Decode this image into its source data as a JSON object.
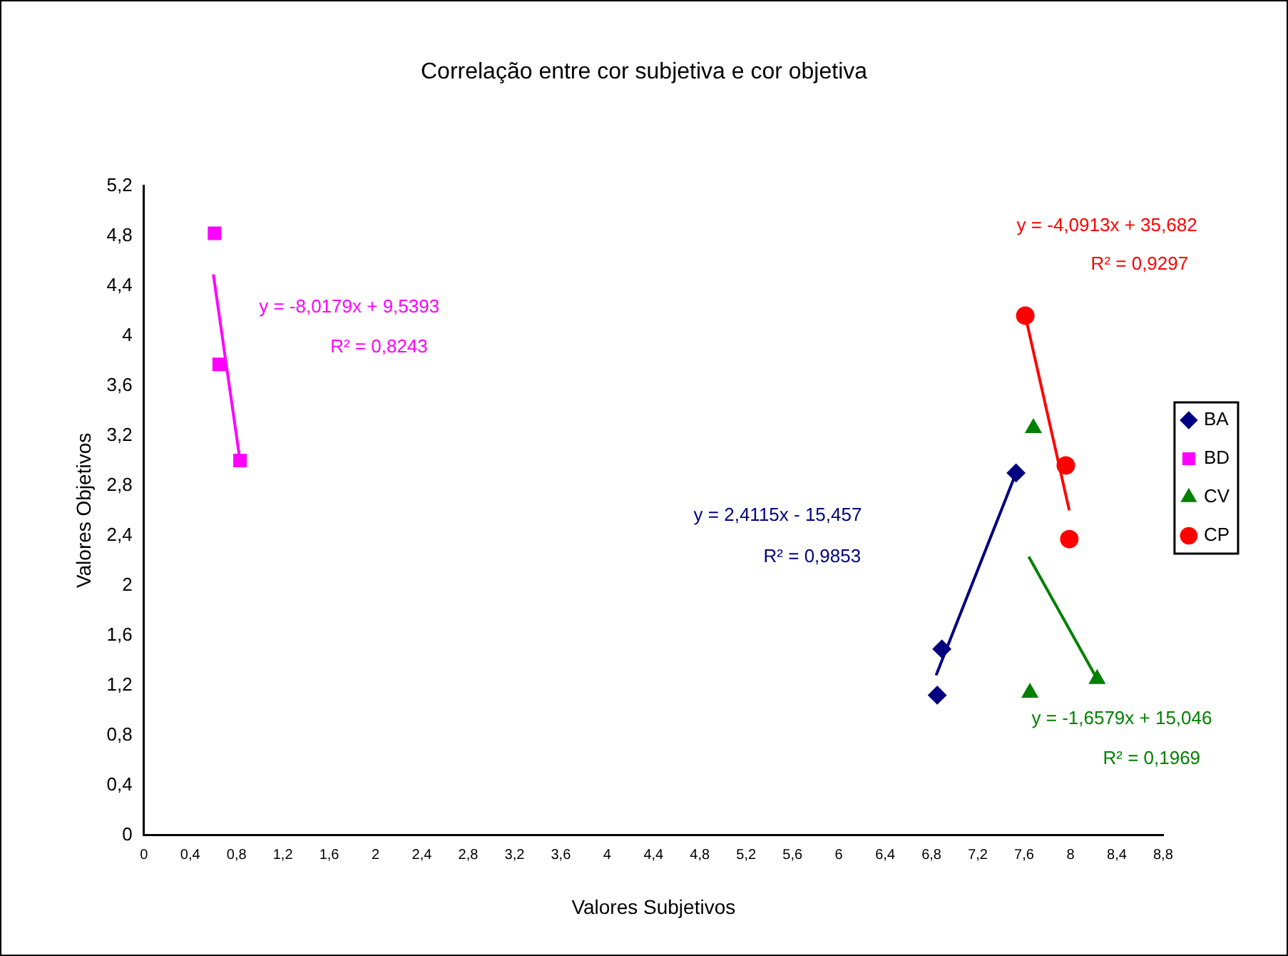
{
  "chart_data": {
    "type": "scatter",
    "title": "Correlação entre cor subjetiva e cor objetiva",
    "xlabel": "Valores Subjetivos",
    "ylabel": "Valores Objetivos",
    "series": [
      {
        "name": "BA",
        "color": "#000080",
        "marker": "diamond",
        "x": [
          6.85,
          6.89,
          7.53
        ],
        "values": [
          1.12,
          1.49,
          2.9
        ]
      },
      {
        "name": "BD",
        "color": "#ff00ff",
        "marker": "square",
        "x": [
          0.61,
          0.65,
          0.83
        ],
        "values": [
          4.82,
          3.77,
          3.0
        ]
      },
      {
        "name": "CV",
        "color": "#008000",
        "marker": "triangle",
        "x": [
          7.65,
          7.68,
          8.23
        ],
        "values": [
          1.14,
          3.26,
          1.25
        ]
      },
      {
        "name": "CP",
        "color": "#ff0000",
        "marker": "circle",
        "x": [
          7.61,
          7.96,
          7.99
        ],
        "values": [
          4.16,
          2.96,
          2.37
        ]
      },
      {
        "type": "line",
        "color": "#ff00ff",
        "marker": "none",
        "x": [
          0.6,
          0.83
        ],
        "values": [
          4.49,
          3.0
        ]
      },
      {
        "type": "line",
        "color": "#000080",
        "marker": "none",
        "x": [
          6.84,
          7.53
        ],
        "values": [
          1.28,
          2.9
        ]
      },
      {
        "type": "line",
        "color": "#008000",
        "marker": "none",
        "x": [
          7.64,
          8.23
        ],
        "values": [
          2.23,
          1.25
        ]
      },
      {
        "type": "line",
        "color": "#ff0000",
        "marker": "none",
        "x": [
          7.61,
          7.99
        ],
        "values": [
          4.16,
          2.6
        ]
      }
    ],
    "annotations": [
      "y = -8,0179x + 9,5393",
      "R² = 0,8243",
      "y = 2,4115x - 15,457",
      "R² = 0,9853",
      "y = -1,6579x + 15,046",
      "R² = 0,1969",
      "y = -4,0913x + 35,682",
      "R² = 0,9297"
    ],
    "xlim": [
      0,
      8.8
    ],
    "xticks": [
      0,
      {
        "value": 0.4,
        "label": "0,4"
      },
      {
        "value": 0.8,
        "label": "0,8"
      },
      {
        "value": 1.2,
        "label": "1,2"
      },
      {
        "value": 1.6,
        "label": "1,6"
      },
      2,
      {
        "value": 2.4,
        "label": "2,4"
      },
      {
        "value": 2.8,
        "label": "2,8"
      },
      {
        "value": 3.2,
        "label": "3,2"
      },
      {
        "value": 3.6,
        "label": "3,6"
      },
      4,
      {
        "value": 4.4,
        "label": "4,4"
      },
      {
        "value": 4.8,
        "label": "4,8"
      },
      {
        "value": 5.2,
        "label": "5,2"
      },
      {
        "value": 5.6,
        "label": "5,6"
      },
      6,
      {
        "value": 6.4,
        "label": "6,4"
      },
      {
        "value": 6.8,
        "label": "6,8"
      },
      {
        "value": 7.2,
        "label": "7,2"
      },
      {
        "value": 7.6,
        "label": "7,6"
      },
      8,
      {
        "value": 8.4,
        "label": "8,4"
      },
      {
        "value": 8.8,
        "label": "8,8"
      }
    ],
    "ylim": [
      0,
      5.2
    ],
    "yticks": [
      0,
      {
        "value": 0.4,
        "label": "0,4"
      },
      {
        "value": 0.8,
        "label": "0,8"
      },
      {
        "value": 1.2,
        "label": "1,2"
      },
      {
        "value": 1.6,
        "label": "1,6"
      },
      2,
      {
        "value": 2.4,
        "label": "2,4"
      },
      {
        "value": 2.8,
        "label": "2,8"
      },
      {
        "value": 3.2,
        "label": "3,2"
      },
      {
        "value": 3.6,
        "label": "3,6"
      },
      4,
      {
        "value": 4.4,
        "label": "4,4"
      },
      {
        "value": 4.8,
        "label": "4,8"
      },
      {
        "value": 5.2,
        "label": "5,2"
      }
    ],
    "grid": false,
    "legend": "right"
  }
}
